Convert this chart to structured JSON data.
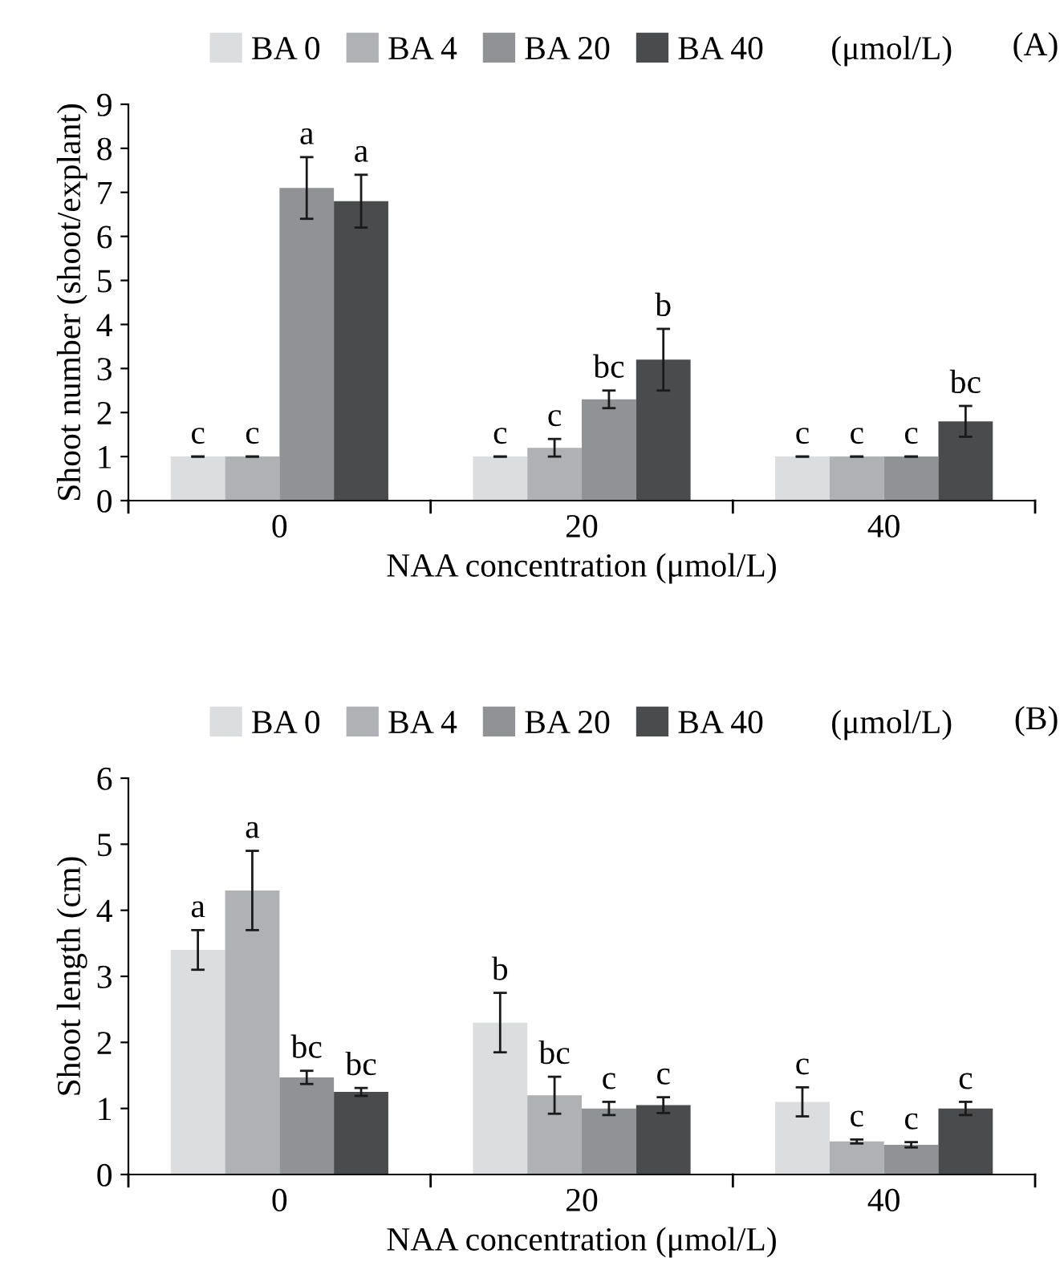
{
  "chart_data": [
    {
      "type": "bar",
      "categories": [
        "0",
        "20",
        "40"
      ],
      "xlabel": "NAA concentration (μmol/L)",
      "ylabel": "Shoot number (shoot/explant)",
      "legend_title": "(μmol/L)",
      "legend": "top",
      "ylim": [
        0,
        9
      ],
      "yticks": [
        0,
        1,
        2,
        3,
        4,
        5,
        6,
        7,
        8,
        9
      ],
      "grid": false,
      "annotations": [
        "(A)"
      ],
      "series": [
        {
          "name": "BA 0",
          "color": "#dcdddf",
          "values": [
            1,
            1,
            1
          ],
          "errors": [
            0,
            0,
            0
          ],
          "value_labels": [
            "c",
            "c",
            "c"
          ]
        },
        {
          "name": "BA 4",
          "color": "#b0b1b5",
          "values": [
            1,
            1.2,
            1
          ],
          "errors": [
            0,
            0.2,
            0
          ],
          "value_labels": [
            "c",
            "c",
            "c"
          ]
        },
        {
          "name": "BA 20",
          "color": "#909296",
          "values": [
            7.1,
            2.3,
            1
          ],
          "errors": [
            0.7,
            0.2,
            0
          ],
          "value_labels": [
            "a",
            "bc",
            "c"
          ]
        },
        {
          "name": "BA 40",
          "color": "#4a4b4d",
          "values": [
            6.8,
            3.2,
            1.8
          ],
          "errors": [
            0.6,
            0.7,
            0.35
          ],
          "value_labels": [
            "a",
            "b",
            "bc"
          ]
        }
      ]
    },
    {
      "type": "bar",
      "categories": [
        "0",
        "20",
        "40"
      ],
      "xlabel": "NAA concentration (μmol/L)",
      "ylabel": "Shoot length (cm)",
      "legend_title": "(μmol/L)",
      "legend": "top",
      "ylim": [
        0,
        6
      ],
      "yticks": [
        0,
        1,
        2,
        3,
        4,
        5,
        6
      ],
      "grid": false,
      "annotations": [
        "(B)"
      ],
      "series": [
        {
          "name": "BA 0",
          "color": "#dcdddf",
          "values": [
            3.4,
            2.3,
            1.1
          ],
          "errors": [
            0.3,
            0.45,
            0.22
          ],
          "value_labels": [
            "a",
            "b",
            "c"
          ]
        },
        {
          "name": "BA 4",
          "color": "#b0b1b5",
          "values": [
            4.3,
            1.2,
            0.5
          ],
          "errors": [
            0.6,
            0.28,
            0.03
          ],
          "value_labels": [
            "a",
            "bc",
            "c"
          ]
        },
        {
          "name": "BA 20",
          "color": "#909296",
          "values": [
            1.47,
            1.0,
            0.45
          ],
          "errors": [
            0.1,
            0.1,
            0.04
          ],
          "value_labels": [
            "bc",
            "c",
            "c"
          ]
        },
        {
          "name": "BA 40",
          "color": "#4a4b4d",
          "values": [
            1.25,
            1.05,
            1.0
          ],
          "errors": [
            0.06,
            0.12,
            0.1
          ],
          "value_labels": [
            "bc",
            "c",
            "c"
          ]
        }
      ]
    }
  ]
}
